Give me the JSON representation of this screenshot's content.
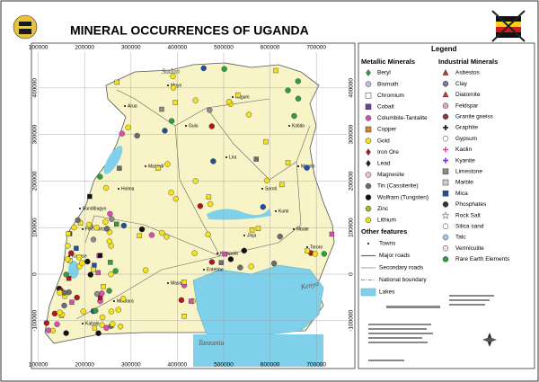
{
  "header": {
    "title": "MINERAL OCCURRENCES OF UGANDA"
  },
  "map_grid": {
    "xticks": [
      100000,
      200000,
      300000,
      400000,
      500000,
      600000,
      700000
    ],
    "yticks": [
      400000,
      300000,
      200000,
      100000,
      0,
      -100000
    ],
    "grid_color": "#9a9a9a"
  },
  "countries": [
    "Sudan",
    "Kenya",
    "Tanzania"
  ],
  "places": [
    "Moyo",
    "Kitgum",
    "Arua",
    "Gulu",
    "Kotido",
    "Lira",
    "Moroto",
    "Masindi",
    "Soroti",
    "Hoima",
    "Kumi",
    "Mbale",
    "Fort Portal",
    "Jinja",
    "Kampala",
    "Tororo",
    "Kasese",
    "Masaka",
    "Mbarara",
    "Kabale",
    "Entebbe",
    "Bundibugyo"
  ],
  "legend": {
    "title": "Legend",
    "metallic": {
      "title": "Metallic Minerals",
      "items": [
        {
          "label": "Beryl",
          "color": "#2e9e3e",
          "shape": "diamond"
        },
        {
          "label": "Bismuth",
          "color": "#c0c0d8",
          "shape": "circle"
        },
        {
          "label": "Chromium",
          "color": "#ffffff",
          "shape": "square"
        },
        {
          "label": "Cobalt",
          "color": "#6b3fa0",
          "shape": "square"
        },
        {
          "label": "Columbite-Tantalite",
          "color": "#d94fb0",
          "shape": "circle"
        },
        {
          "label": "Copper",
          "color": "#d9822b",
          "shape": "square"
        },
        {
          "label": "Gold",
          "color": "#f3e21c",
          "shape": "circle"
        },
        {
          "label": "Iron Ore",
          "color": "#b3161b",
          "shape": "diamond"
        },
        {
          "label": "Lead",
          "color": "#222222",
          "shape": "diamond"
        },
        {
          "label": "Magnesite",
          "color": "#f0c0d8",
          "shape": "circle"
        },
        {
          "label": "Tin (Cassiterite)",
          "color": "#6d6d6d",
          "shape": "circle"
        },
        {
          "label": "Wolfram (Tungsten)",
          "color": "#111111",
          "shape": "circle"
        },
        {
          "label": "Zinc",
          "color": "#9db83a",
          "shape": "circle"
        },
        {
          "label": "Lithium",
          "color": "#e8e020",
          "shape": "circle"
        }
      ]
    },
    "industrial": {
      "title": "Industrial Minerals",
      "items": [
        {
          "label": "Asbestos",
          "color": "#c0392b",
          "shape": "triangle"
        },
        {
          "label": "Clay",
          "color": "#7a7a9a",
          "shape": "circle"
        },
        {
          "label": "Diatomite",
          "color": "#d23a2a",
          "shape": "triangle"
        },
        {
          "label": "Feldspar",
          "color": "#e9a0c8",
          "shape": "circle"
        },
        {
          "label": "Granite gneiss",
          "color": "#8b3a3a",
          "shape": "circle"
        },
        {
          "label": "Graphite",
          "color": "#111111",
          "shape": "cross"
        },
        {
          "label": "Gypsum",
          "color": "#ffffff",
          "shape": "circle"
        },
        {
          "label": "Kaolin",
          "color": "#d94fb0",
          "shape": "cross"
        },
        {
          "label": "Kyanite",
          "color": "#8a2be2",
          "shape": "cross"
        },
        {
          "label": "Limestone",
          "color": "#8c8c8c",
          "shape": "square"
        },
        {
          "label": "Marble",
          "color": "#cfcfcf",
          "shape": "square"
        },
        {
          "label": "Mica",
          "color": "#1f4fa0",
          "shape": "square"
        },
        {
          "label": "Phosphates",
          "color": "#333333",
          "shape": "circle"
        },
        {
          "label": "Rock Salt",
          "color": "#ffffff",
          "shape": "star"
        },
        {
          "label": "Silica sand",
          "color": "#ffffff",
          "shape": "circle"
        },
        {
          "label": "Talc",
          "color": "#a8c8e8",
          "shape": "circle"
        },
        {
          "label": "Vermiculite",
          "color": "#e8e8e8",
          "shape": "circle"
        },
        {
          "label": "Rare Earth Elements",
          "color": "#2e9e3e",
          "shape": "circle"
        }
      ]
    },
    "other": {
      "title": "Other features",
      "items": [
        {
          "label": "Towns"
        },
        {
          "label": "Major roads"
        },
        {
          "label": "Secondary roads"
        },
        {
          "label": "National boundary"
        },
        {
          "label": "Lakes"
        }
      ]
    }
  }
}
